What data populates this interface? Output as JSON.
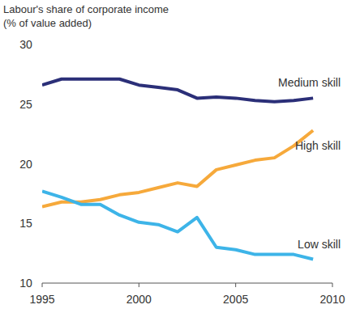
{
  "chart_data": {
    "type": "line",
    "title": "Labour's share of corporate income",
    "subtitle": "(% of value added)",
    "x": [
      1995,
      1996,
      1997,
      1998,
      1999,
      2000,
      2001,
      2002,
      2003,
      2004,
      2005,
      2006,
      2007,
      2008,
      2009
    ],
    "xlim": [
      1995,
      2010
    ],
    "xticks": [
      1995,
      2000,
      2005,
      2010
    ],
    "ylim": [
      10,
      30
    ],
    "yticks": [
      10,
      15,
      20,
      25,
      30
    ],
    "grid": false,
    "series": [
      {
        "name": "Medium skill",
        "color": "#2b2f78",
        "values": [
          26.6,
          27.1,
          27.1,
          27.1,
          27.1,
          26.6,
          26.4,
          26.2,
          25.5,
          25.6,
          25.5,
          25.3,
          25.2,
          25.3,
          25.5
        ]
      },
      {
        "name": "High skill",
        "color": "#f6a93b",
        "values": [
          16.4,
          16.8,
          16.8,
          17.0,
          17.4,
          17.6,
          18.0,
          18.4,
          18.1,
          19.5,
          19.9,
          20.3,
          20.5,
          21.5,
          22.8
        ]
      },
      {
        "name": "Low skill",
        "color": "#3db4e8",
        "values": [
          17.7,
          17.2,
          16.6,
          16.6,
          15.7,
          15.1,
          14.9,
          14.3,
          15.5,
          13.0,
          12.8,
          12.4,
          12.4,
          12.4,
          12.0
        ]
      }
    ]
  }
}
